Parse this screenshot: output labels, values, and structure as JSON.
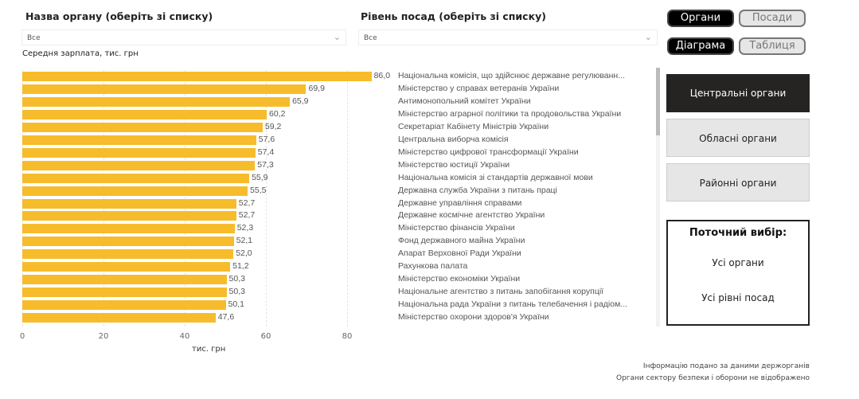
{
  "filters": {
    "organ": {
      "title": "Назва органу (оберіть зі списку)",
      "value": "Все"
    },
    "level": {
      "title": "Рівень посад (оберіть зі списку)",
      "value": "Все"
    }
  },
  "toggles": {
    "organs": "Органи",
    "positions": "Посади",
    "diagram": "Діаграма",
    "table": "Таблиця"
  },
  "categories": [
    "Центральні органи",
    "Обласні органи",
    "Районні органи"
  ],
  "selection": {
    "title": "Поточний вибір:",
    "organs": "Усі органи",
    "levels": "Усі рівні посад"
  },
  "chart_title": "Середня зарплата, тис. грн",
  "notes": [
    "Інформацію подано за даними держорганів",
    "Органи сектору безпеки і оборони не відображено"
  ],
  "colors": {
    "bar": "#F7BC2B",
    "active": "#252423"
  },
  "chart_data": {
    "type": "bar",
    "orientation": "horizontal",
    "title": "Середня зарплата, тис. грн",
    "xlabel": "тис. грн",
    "xlim": [
      0,
      86
    ],
    "xticks": [
      "0",
      "20",
      "40",
      "60",
      "80"
    ],
    "categories": [
      "Національна комісія, що здійснює державне регулюванн...",
      "Міністерство у справах ветеранів України",
      "Антимонопольний комітет України",
      "Міністерство аграрної політики та продовольства України",
      "Секретаріат Кабінету Міністрів України",
      "Центральна виборча комісія",
      "Міністерство цифрової трансформації України",
      "Міністерство юстиції України",
      "Національна комісія зі стандартів державної мови",
      "Державна служба України з питань праці",
      "Державне управління справами",
      "Державне космічне агентство України",
      "Міністерство фінансів України",
      "Фонд державного майна України",
      "Апарат Верховної Ради України",
      "Рахункова палата",
      "Міністерство економіки України",
      "Національне агентство з питань запобігання корупції",
      "Національна рада України з питань телебачення і радіом...",
      "Міністерство охорони здоров'я України"
    ],
    "values": [
      86.0,
      69.9,
      65.9,
      60.2,
      59.2,
      57.6,
      57.4,
      57.3,
      55.9,
      55.5,
      52.7,
      52.7,
      52.3,
      52.1,
      52.0,
      51.2,
      50.3,
      50.3,
      50.1,
      47.6
    ],
    "labels": [
      "86,0",
      "69,9",
      "65,9",
      "60,2",
      "59,2",
      "57,6",
      "57,4",
      "57,3",
      "55,9",
      "55,5",
      "52,7",
      "52,7",
      "52,3",
      "52,1",
      "52,0",
      "51,2",
      "50,3",
      "50,3",
      "50,1",
      "47,6"
    ]
  }
}
